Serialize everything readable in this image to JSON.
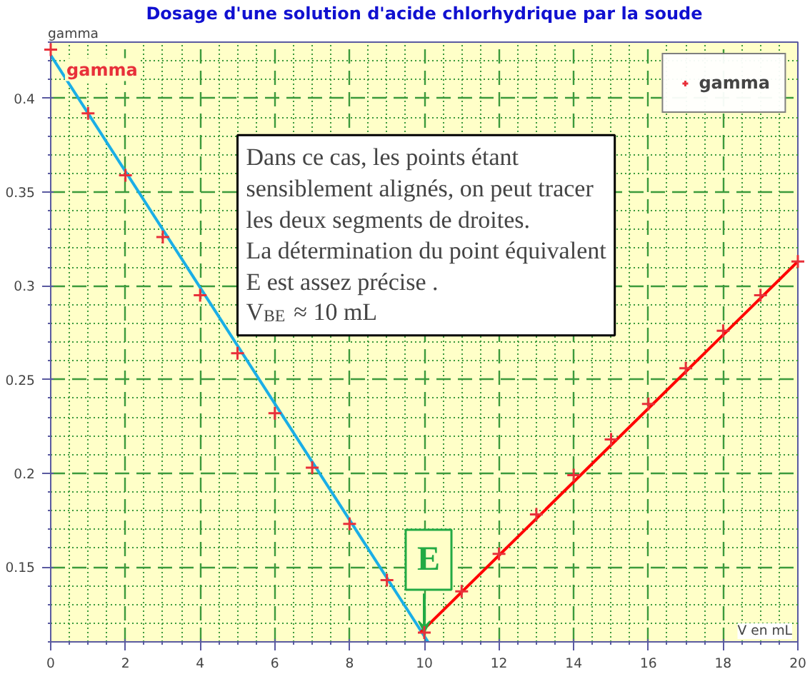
{
  "chart_data": {
    "type": "scatter",
    "title": "Dosage d'une solution d'acide chlorhydrique par la soude",
    "xlabel": "V en mL",
    "ylabel": "gamma",
    "xlim": [
      0,
      20
    ],
    "xticks": [
      0,
      {
        "value": 0.5,
        "label": null
      },
      {
        "value": 1,
        "label": null
      },
      {
        "value": 1.5,
        "label": null
      },
      2,
      {
        "value": 2.5,
        "label": null
      },
      {
        "value": 3,
        "label": null
      },
      {
        "value": 3.5,
        "label": null
      },
      4,
      {
        "value": 4.5,
        "label": null
      },
      {
        "value": 5,
        "label": null
      },
      {
        "value": 5.5,
        "label": null
      },
      6,
      {
        "value": 6.5,
        "label": null
      },
      {
        "value": 7,
        "label": null
      },
      {
        "value": 7.5,
        "label": null
      },
      8,
      {
        "value": 8.5,
        "label": null
      },
      {
        "value": 9,
        "label": null
      },
      {
        "value": 9.5,
        "label": null
      },
      10,
      {
        "value": 10.5,
        "label": null
      },
      {
        "value": 11,
        "label": null
      },
      {
        "value": 11.5,
        "label": null
      },
      12,
      {
        "value": 12.5,
        "label": null
      },
      {
        "value": 13,
        "label": null
      },
      {
        "value": 13.5,
        "label": null
      },
      14,
      {
        "value": 14.5,
        "label": null
      },
      {
        "value": 15,
        "label": null
      },
      {
        "value": 15.5,
        "label": null
      },
      16,
      {
        "value": 16.5,
        "label": null
      },
      {
        "value": 17,
        "label": null
      },
      {
        "value": 17.5,
        "label": null
      },
      18,
      {
        "value": 18.5,
        "label": null
      },
      {
        "value": 19,
        "label": null
      },
      {
        "value": 19.5,
        "label": null
      },
      20
    ],
    "ylim": [
      0.11,
      0.43
    ],
    "yticks": [
      {
        "value": 0.11,
        "label": null
      },
      {
        "value": 0.12,
        "label": null
      },
      {
        "value": 0.13,
        "label": null
      },
      {
        "value": 0.14,
        "label": null
      },
      0.15,
      {
        "value": 0.16,
        "label": null
      },
      {
        "value": 0.17,
        "label": null
      },
      {
        "value": 0.18,
        "label": null
      },
      {
        "value": 0.19,
        "label": null
      },
      0.2,
      {
        "value": 0.21,
        "label": null
      },
      {
        "value": 0.22,
        "label": null
      },
      {
        "value": 0.23,
        "label": null
      },
      {
        "value": 0.24,
        "label": null
      },
      0.25,
      {
        "value": 0.26,
        "label": null
      },
      {
        "value": 0.27,
        "label": null
      },
      {
        "value": 0.28,
        "label": null
      },
      {
        "value": 0.29,
        "label": null
      },
      0.3,
      {
        "value": 0.31,
        "label": null
      },
      {
        "value": 0.32,
        "label": null
      },
      {
        "value": 0.33,
        "label": null
      },
      {
        "value": 0.34,
        "label": null
      },
      0.35,
      {
        "value": 0.36,
        "label": null
      },
      {
        "value": 0.37,
        "label": null
      },
      {
        "value": 0.38,
        "label": null
      },
      {
        "value": 0.39,
        "label": null
      },
      0.4,
      {
        "value": 0.41,
        "label": null
      },
      {
        "value": 0.42,
        "label": null
      },
      {
        "value": 0.43,
        "label": null
      }
    ],
    "grid": true,
    "legend": "top right",
    "series": [
      {
        "name": "gamma",
        "marker": "cross",
        "color": "#e8303a",
        "x": [
          0,
          1,
          2,
          3,
          4,
          5,
          6,
          7,
          8,
          9,
          10,
          11,
          12,
          13,
          14,
          15,
          16,
          17,
          18,
          19,
          20
        ],
        "values": [
          0.426,
          0.392,
          0.359,
          0.326,
          0.295,
          0.264,
          0.232,
          0.203,
          0.173,
          0.143,
          0.115,
          0.137,
          0.157,
          0.178,
          0.199,
          0.218,
          0.237,
          0.256,
          0.276,
          0.295,
          0.313
        ]
      },
      {
        "type": "line",
        "color": "#1aaee6",
        "x": [
          0,
          10.1
        ],
        "values": [
          0.423,
          0.11
        ]
      },
      {
        "type": "line",
        "color": "#ff0000",
        "x": [
          9.9,
          20
        ],
        "values": [
          0.115,
          0.313
        ]
      }
    ],
    "annotations": [
      "Dans ce cas, les points étant\nsensiblement alignés, on peut tracer\nles deux segments de droites.\nLa détermination du point équivalent\nE est assez précise .\nV$_{BE}$ ≈ 10 mL",
      {
        "text": "E",
        "x": 10,
        "y": 0.115
      }
    ]
  }
}
